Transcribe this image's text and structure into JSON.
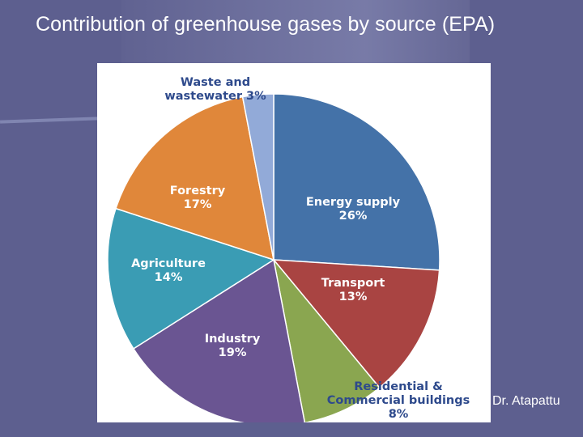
{
  "slide": {
    "title": "Contribution of greenhouse gases by source (EPA)",
    "author": "Dr. Atapattu"
  },
  "colors": {
    "background": "#5d5f8f",
    "label_white": "#ffffff",
    "label_dark": "#2e4a8c"
  },
  "chart_data": {
    "type": "pie",
    "title": "",
    "unit": "%",
    "slices": [
      {
        "lines": [
          "Energy supply",
          "26%"
        ],
        "value": 26,
        "color": "#4472a8"
      },
      {
        "lines": [
          "Transport",
          "13%"
        ],
        "value": 13,
        "color": "#a94442"
      },
      {
        "lines": [
          "Residential &",
          "Commercial buildings",
          "8%"
        ],
        "value": 8,
        "color": "#8aa650"
      },
      {
        "lines": [
          "Industry",
          "19%"
        ],
        "value": 19,
        "color": "#6a5592"
      },
      {
        "lines": [
          "Agriculture",
          "14%"
        ],
        "value": 14,
        "color": "#3a9cb4"
      },
      {
        "lines": [
          "Forestry",
          "17%"
        ],
        "value": 17,
        "color": "#e0873a"
      },
      {
        "lines": [
          "Waste and",
          "wastewater 3%"
        ],
        "value": 3,
        "color": "#92aad8"
      }
    ]
  }
}
